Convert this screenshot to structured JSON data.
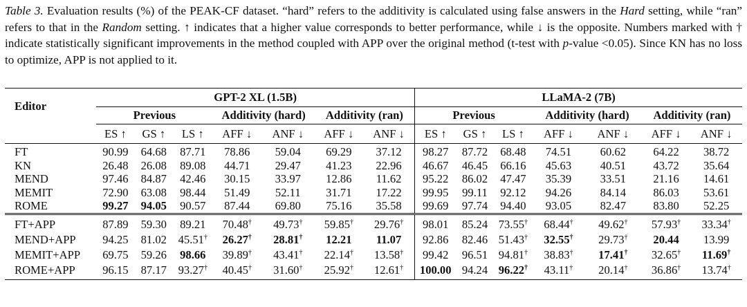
{
  "caption": {
    "label": "Table 3.",
    "p1": " Evaluation results (%) of the PEAK-CF dataset. “hard” refers to the additivity is calculated using false answers in the ",
    "hard": "Hard",
    "p2": " setting, while “ran” refers to that in the ",
    "random": "Random",
    "p3": " setting. ↑ indicates that a higher value corresponds to better performance, while ↓ is the opposite. Numbers marked with † indicate statistically significant improvements in the method coupled with APP over the original method (t-test with ",
    "pvar": "p",
    "p4": "-value <0.05). Since KN has no loss to optimize, APP is not applied to it."
  },
  "table": {
    "editor_header": "Editor",
    "models": [
      "GPT-2 XL (1.5B)",
      "LLaMA-2 (7B)"
    ],
    "groups": [
      "Previous",
      "Additivity (hard)",
      "Additivity (ran)"
    ],
    "metrics": [
      "ES ↑",
      "GS ↑",
      "LS ↑",
      "AFF ↓",
      "ANF ↓",
      "AFF ↓",
      "ANF ↓"
    ],
    "rows_base": [
      {
        "name": "FT",
        "cells": [
          "90.99",
          "64.68",
          "87.71",
          "78.86",
          "59.04",
          "69.29",
          "37.12",
          "98.27",
          "87.72",
          "68.48",
          "74.51",
          "60.62",
          "64.22",
          "38.72"
        ]
      },
      {
        "name": "KN",
        "cells": [
          "26.48",
          "26.08",
          "89.08",
          "44.71",
          "29.47",
          "41.23",
          "22.96",
          "46.67",
          "46.45",
          "66.16",
          "45.63",
          "40.51",
          "43.72",
          "35.64"
        ]
      },
      {
        "name": "MEND",
        "cells": [
          "97.46",
          "84.87",
          "42.46",
          "30.15",
          "33.97",
          "12.86",
          "11.62",
          "95.22",
          "86.02",
          "47.47",
          "35.39",
          "33.51",
          "21.16",
          "14.61"
        ]
      },
      {
        "name": "MEMIT",
        "cells": [
          "72.90",
          "63.08",
          "98.44",
          "51.49",
          "52.11",
          "31.71",
          "17.22",
          "99.95",
          "99.11",
          "92.12",
          "94.26",
          "84.14",
          "86.03",
          "53.61"
        ]
      },
      {
        "name": "ROME",
        "cells": [
          "99.27",
          "94.05",
          "90.57",
          "87.44",
          "69.80",
          "75.16",
          "35.58",
          "99.69",
          "97.74",
          "94.40",
          "93.05",
          "82.47",
          "83.80",
          "52.25"
        ]
      }
    ],
    "rows_app": [
      {
        "name": "FT+APP",
        "cells": [
          "87.89",
          "59.30",
          "89.21",
          "70.48",
          "49.73",
          "59.85",
          "29.76",
          "98.01",
          "85.24",
          "73.55",
          "68.44",
          "49.62",
          "57.93",
          "33.34"
        ]
      },
      {
        "name": "MEND+APP",
        "cells": [
          "94.25",
          "81.02",
          "45.51",
          "26.27",
          "28.81",
          "12.21",
          "11.07",
          "92.86",
          "82.46",
          "51.43",
          "32.55",
          "29.73",
          "20.44",
          "13.99"
        ]
      },
      {
        "name": "MEMIT+APP",
        "cells": [
          "69.75",
          "59.26",
          "98.66",
          "39.89",
          "43.41",
          "22.14",
          "13.58",
          "99.42",
          "96.51",
          "94.81",
          "38.83",
          "17.41",
          "32.65",
          "11.69"
        ]
      },
      {
        "name": "ROME+APP",
        "cells": [
          "96.15",
          "87.17",
          "93.27",
          "40.45",
          "31.60",
          "25.92",
          "12.61",
          "100.00",
          "94.24",
          "96.22",
          "43.11",
          "20.14",
          "36.86",
          "13.74"
        ]
      }
    ],
    "dagger": "†"
  }
}
